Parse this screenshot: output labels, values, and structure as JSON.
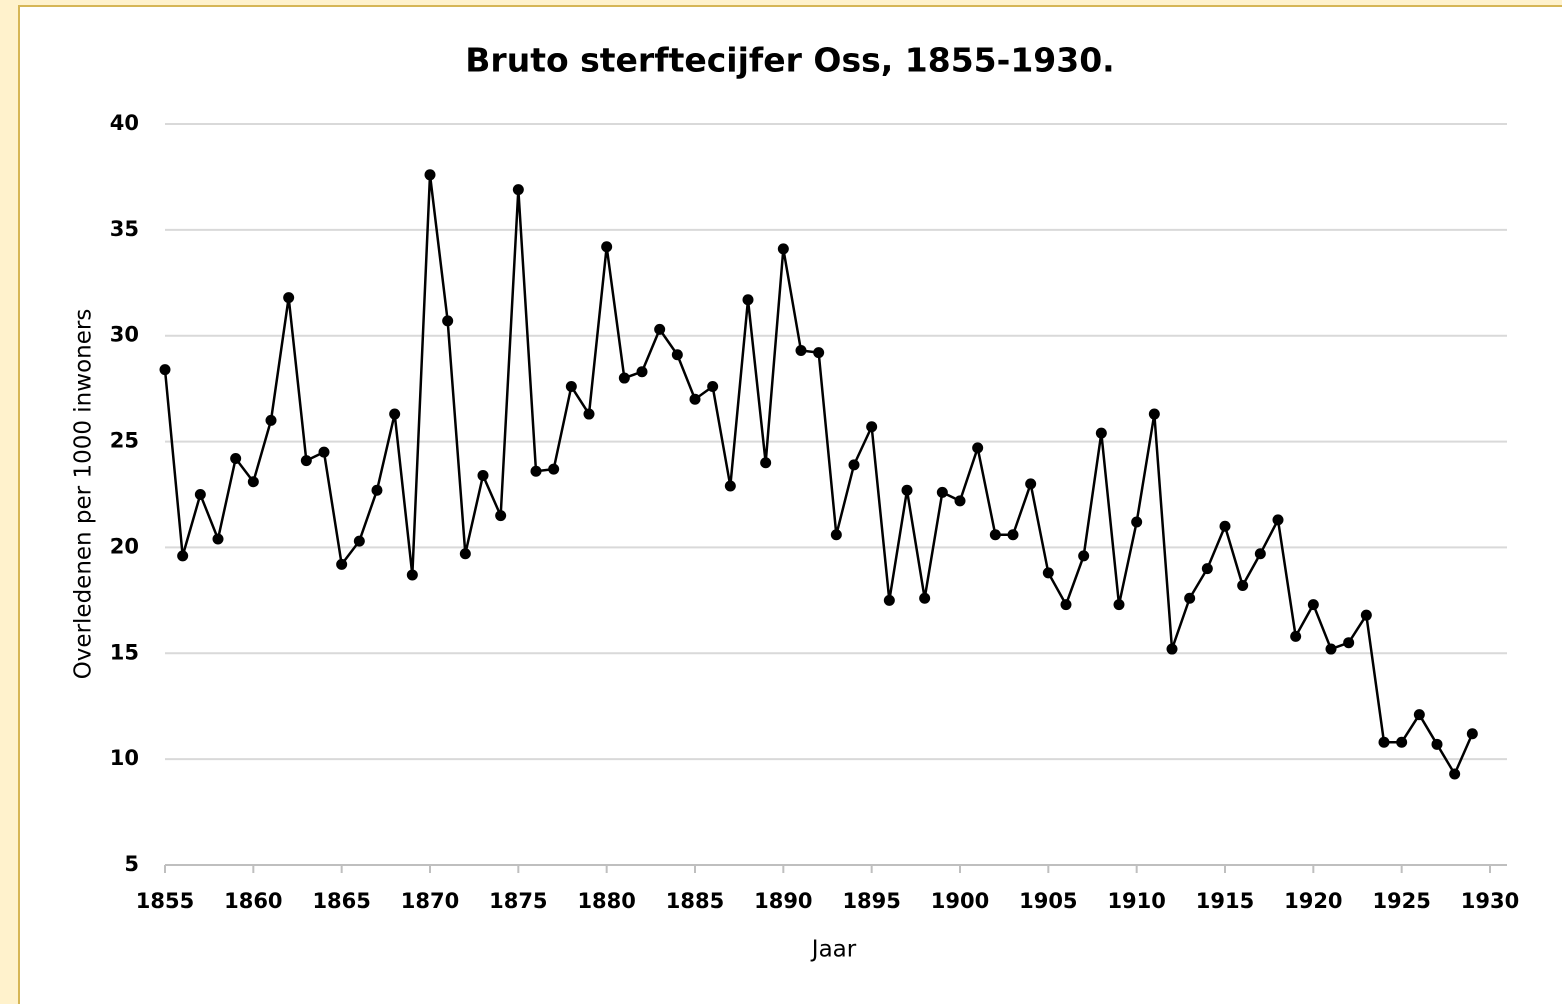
{
  "chart_data": {
    "type": "line",
    "title": "Bruto sterftecijfer Oss, 1855-1930.",
    "x_label": "Jaar",
    "y_label": "Overledenen per 1000 inwoners",
    "x": [
      1855,
      1856,
      1857,
      1858,
      1859,
      1860,
      1861,
      1862,
      1863,
      1864,
      1865,
      1866,
      1867,
      1868,
      1869,
      1870,
      1871,
      1872,
      1873,
      1874,
      1875,
      1876,
      1877,
      1878,
      1879,
      1880,
      1881,
      1882,
      1883,
      1884,
      1885,
      1886,
      1887,
      1888,
      1889,
      1890,
      1891,
      1892,
      1893,
      1894,
      1895,
      1896,
      1897,
      1898,
      1899,
      1900,
      1901,
      1902,
      1903,
      1904,
      1905,
      1906,
      1907,
      1908,
      1909,
      1910,
      1911,
      1912,
      1913,
      1914,
      1915,
      1916,
      1917,
      1918,
      1919,
      1920,
      1921,
      1922,
      1923,
      1924,
      1925,
      1926,
      1927,
      1928,
      1929
    ],
    "series": [
      {
        "color": "#000000",
        "values": [
          28.4,
          19.6,
          22.5,
          20.4,
          24.2,
          23.1,
          26.0,
          31.8,
          24.1,
          24.5,
          19.2,
          20.3,
          22.7,
          26.3,
          18.7,
          37.6,
          30.7,
          19.7,
          23.4,
          21.5,
          36.9,
          23.6,
          23.7,
          27.6,
          26.3,
          34.2,
          28.0,
          28.3,
          30.3,
          29.1,
          27.0,
          27.6,
          22.9,
          31.7,
          24.0,
          34.1,
          29.3,
          29.2,
          20.6,
          23.9,
          25.7,
          17.5,
          22.7,
          17.6,
          22.6,
          22.2,
          24.7,
          20.6,
          20.6,
          23.0,
          18.8,
          17.3,
          19.6,
          25.4,
          17.3,
          21.2,
          26.3,
          15.2,
          17.6,
          19.0,
          21.0,
          18.2,
          19.7,
          21.3,
          15.8,
          17.3,
          15.2,
          15.5,
          16.8,
          10.8,
          10.8,
          12.1,
          10.7,
          9.3,
          11.2
        ]
      }
    ],
    "xlim": [
      1855,
      1930
    ],
    "xticks": [
      1855,
      1860,
      1865,
      1870,
      1875,
      1880,
      1885,
      1890,
      1895,
      1900,
      1905,
      1910,
      1915,
      1920,
      1925,
      1930
    ],
    "ylim": [
      5,
      40
    ],
    "yticks": [
      5,
      10,
      15,
      20,
      25,
      30,
      35,
      40
    ],
    "grid": true
  }
}
